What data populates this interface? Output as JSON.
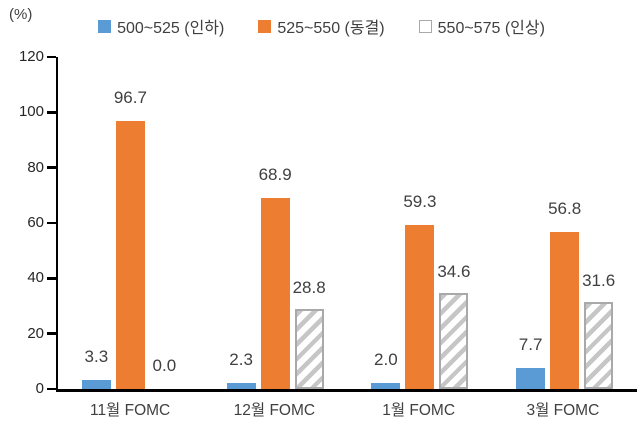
{
  "chart_data": {
    "type": "bar",
    "title": "",
    "unit_label": "(%)",
    "categories": [
      "11월 FOMC",
      "12월 FOMC",
      "1월 FOMC",
      "3월 FOMC"
    ],
    "series": [
      {
        "name": "500~525 (인하)",
        "values": [
          3.3,
          2.3,
          2.0,
          7.7
        ],
        "color": "#5B9BD5",
        "style": "solid"
      },
      {
        "name": "525~550 (동결)",
        "values": [
          96.7,
          68.9,
          59.3,
          56.8
        ],
        "color": "#ED7D31",
        "style": "solid"
      },
      {
        "name": "550~575 (인상)",
        "values": [
          0.0,
          28.8,
          34.6,
          31.6
        ],
        "color": "#C6C6C6",
        "style": "hatched"
      }
    ],
    "ylim": [
      0,
      120
    ],
    "yticks": [
      0,
      20,
      40,
      60,
      80,
      100,
      120
    ],
    "grid": false,
    "legend_position": "top",
    "value_label_decimals": 1
  },
  "colors": {
    "axis": "#000000",
    "label_text": "#404040",
    "bar_blue": "#5B9BD5",
    "bar_orange": "#ED7D31",
    "hatch_stripe": "#C6C6C6",
    "hatch_border": "#A9A9A9",
    "background": "#FFFFFF"
  }
}
